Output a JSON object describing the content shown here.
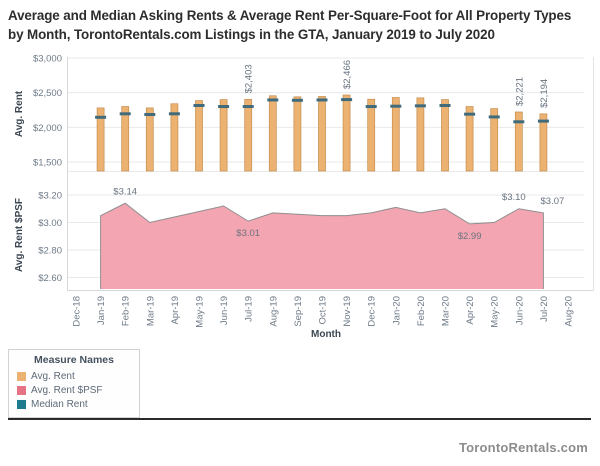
{
  "title": "Average and Median Asking Rents & Average Rent Per-Square-Foot for All Property Types by Month, TorontoRentals.com Listings in the GTA, January 2019 to July 2020",
  "footer": "TorontoRentals.com",
  "legend": {
    "title": "Measure Names",
    "items": [
      {
        "label": "Avg. Rent",
        "color": "#ecb272"
      },
      {
        "label": "Avg. Rent $PSF",
        "color": "#e57383"
      },
      {
        "label": "Median Rent",
        "color": "#1e7b8e"
      }
    ]
  },
  "chart_data": {
    "type": "combo",
    "xlabel": "Month",
    "categories": [
      "Dec-18",
      "Jan-19",
      "Feb-19",
      "Mar-19",
      "Apr-19",
      "May-19",
      "Jun-19",
      "Jul-19",
      "Aug-19",
      "Sep-19",
      "Oct-19",
      "Nov-19",
      "Dec-19",
      "Jan-20",
      "Feb-20",
      "Mar-20",
      "Apr-20",
      "May-20",
      "Jun-20",
      "Jul-20",
      "Aug-20"
    ],
    "rent_panel": {
      "ylabel": "Avg. Rent",
      "ticks": [
        3000,
        2500,
        2000,
        1500
      ],
      "tick_labels": [
        "$3,000",
        "$2,500",
        "$2,000",
        "$1,500"
      ],
      "ylim": [
        1500,
        3000
      ],
      "grid": true
    },
    "psf_panel": {
      "ylabel": "Avg. Rent $PSF",
      "ticks": [
        3.2,
        3.0,
        2.8,
        2.6
      ],
      "tick_labels": [
        "$3.20",
        "$3.00",
        "$2.80",
        "$2.60"
      ],
      "ylim": [
        2.6,
        3.2
      ],
      "grid": true
    },
    "series": [
      {
        "name": "Avg. Rent",
        "type": "bar",
        "panel": "rent",
        "color": "#ecb272",
        "values": [
          null,
          2280,
          2300,
          2280,
          2340,
          2385,
          2400,
          2403,
          2455,
          2440,
          2445,
          2466,
          2405,
          2430,
          2425,
          2400,
          2300,
          2270,
          2221,
          2194,
          null
        ]
      },
      {
        "name": "Median Rent",
        "type": "tick",
        "panel": "rent",
        "color": "#3f6b7d",
        "values": [
          null,
          2145,
          2195,
          2185,
          2195,
          2315,
          2300,
          2300,
          2395,
          2390,
          2395,
          2400,
          2300,
          2305,
          2310,
          2315,
          2190,
          2150,
          2080,
          2090,
          null
        ]
      },
      {
        "name": "Avg. Rent $PSF",
        "type": "area",
        "panel": "psf",
        "color": "#f3a5b1",
        "values": [
          null,
          3.05,
          3.14,
          3.0,
          3.04,
          3.08,
          3.12,
          3.01,
          3.07,
          3.06,
          3.05,
          3.05,
          3.07,
          3.11,
          3.07,
          3.1,
          2.99,
          3.0,
          3.1,
          3.07,
          null
        ]
      }
    ],
    "annotations": {
      "rent": [
        {
          "category": "Jul-19",
          "text": "$2,403"
        },
        {
          "category": "Nov-19",
          "text": "$2,466"
        },
        {
          "category": "Jun-20",
          "text": "$2,221"
        },
        {
          "category": "Jul-20",
          "text": "$2,194"
        }
      ],
      "psf": [
        {
          "category": "Feb-19",
          "text": "$3.14",
          "position": "above"
        },
        {
          "category": "Jul-19",
          "text": "$3.01",
          "position": "below"
        },
        {
          "category": "Apr-20",
          "text": "$2.99",
          "position": "below"
        },
        {
          "category": "Jun-20",
          "text": "$3.10",
          "position": "above",
          "dx": -5
        },
        {
          "category": "Jul-20",
          "text": "$3.07",
          "position": "above",
          "dx": 9
        }
      ]
    },
    "legend_position": "bottom-left"
  }
}
